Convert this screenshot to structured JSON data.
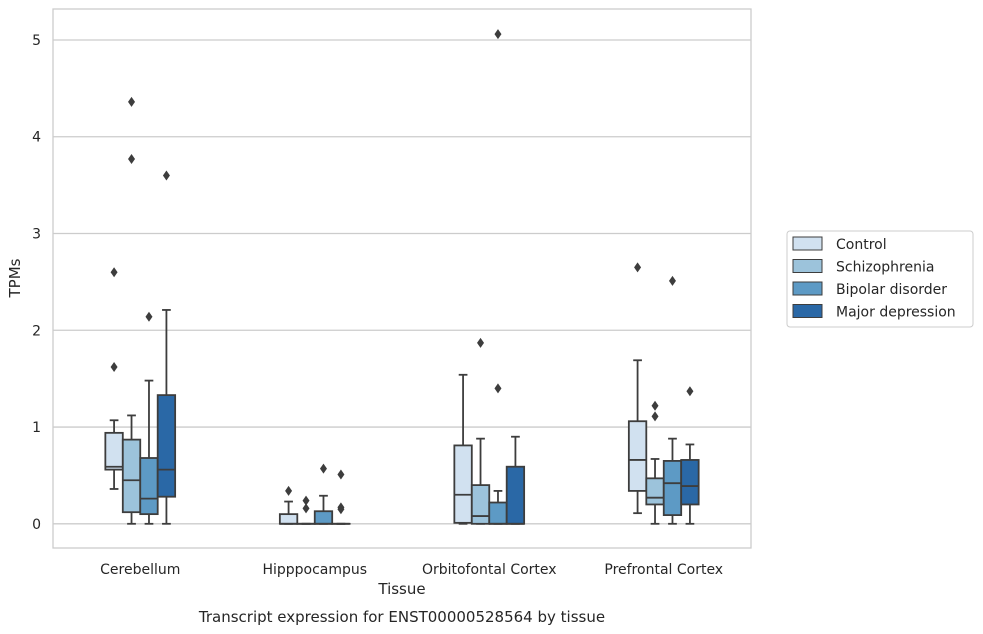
{
  "caption": "Transcript expression for ENST00000528564 by tissue",
  "chart_data": {
    "type": "box",
    "xlabel": "Tissue",
    "ylabel": "TPMs",
    "ylim": [
      -0.25,
      5.32
    ],
    "yticks": [
      0,
      1,
      2,
      3,
      4,
      5
    ],
    "grid": "horizontal",
    "legend_position": "right",
    "categories": [
      "Cerebellum",
      "Hipppocampus",
      "Orbitofontal Cortex",
      "Prefrontal Cortex"
    ],
    "series": [
      {
        "name": "Control",
        "color": "#d1e1f0",
        "boxes": [
          {
            "whisker_low": 0.36,
            "q1": 0.56,
            "median": 0.59,
            "q3": 0.94,
            "whisker_high": 1.07,
            "outliers": [
              1.62,
              2.6
            ]
          },
          {
            "whisker_low": 0.0,
            "q1": 0.0,
            "median": 0.0,
            "q3": 0.1,
            "whisker_high": 0.23,
            "outliers": [
              0.34
            ]
          },
          {
            "whisker_low": 0.0,
            "q1": 0.01,
            "median": 0.3,
            "q3": 0.81,
            "whisker_high": 1.54,
            "outliers": []
          },
          {
            "whisker_low": 0.11,
            "q1": 0.34,
            "median": 0.66,
            "q3": 1.06,
            "whisker_high": 1.69,
            "outliers": [
              2.65
            ]
          }
        ]
      },
      {
        "name": "Schizophrenia",
        "color": "#9cc3db",
        "boxes": [
          {
            "whisker_low": 0.0,
            "q1": 0.12,
            "median": 0.45,
            "q3": 0.87,
            "whisker_high": 1.12,
            "outliers": [
              3.77,
              4.36
            ]
          },
          {
            "whisker_low": 0.0,
            "q1": 0.0,
            "median": 0.0,
            "q3": 0.0,
            "whisker_high": 0.0,
            "outliers": [
              0.16,
              0.24
            ]
          },
          {
            "whisker_low": 0.0,
            "q1": 0.0,
            "median": 0.08,
            "q3": 0.4,
            "whisker_high": 0.88,
            "outliers": [
              1.87
            ]
          },
          {
            "whisker_low": 0.0,
            "q1": 0.2,
            "median": 0.27,
            "q3": 0.47,
            "whisker_high": 0.67,
            "outliers": [
              1.11,
              1.22
            ]
          }
        ]
      },
      {
        "name": "Bipolar disorder",
        "color": "#5d9ac5",
        "boxes": [
          {
            "whisker_low": 0.0,
            "q1": 0.1,
            "median": 0.26,
            "q3": 0.68,
            "whisker_high": 1.48,
            "outliers": [
              2.14
            ]
          },
          {
            "whisker_low": 0.0,
            "q1": 0.0,
            "median": 0.0,
            "q3": 0.13,
            "whisker_high": 0.29,
            "outliers": [
              0.57
            ]
          },
          {
            "whisker_low": 0.0,
            "q1": 0.0,
            "median": 0.0,
            "q3": 0.22,
            "whisker_high": 0.34,
            "outliers": [
              1.4,
              5.06
            ]
          },
          {
            "whisker_low": 0.0,
            "q1": 0.09,
            "median": 0.42,
            "q3": 0.65,
            "whisker_high": 0.88,
            "outliers": [
              2.51
            ]
          }
        ]
      },
      {
        "name": "Major depression",
        "color": "#2a68a6",
        "boxes": [
          {
            "whisker_low": 0.0,
            "q1": 0.28,
            "median": 0.56,
            "q3": 1.33,
            "whisker_high": 2.21,
            "outliers": [
              3.6
            ]
          },
          {
            "whisker_low": 0.0,
            "q1": 0.0,
            "median": 0.0,
            "q3": 0.0,
            "whisker_high": 0.0,
            "outliers": [
              0.15,
              0.17,
              0.51
            ]
          },
          {
            "whisker_low": 0.0,
            "q1": 0.0,
            "median": 0.0,
            "q3": 0.59,
            "whisker_high": 0.9,
            "outliers": []
          },
          {
            "whisker_low": 0.0,
            "q1": 0.2,
            "median": 0.39,
            "q3": 0.66,
            "whisker_high": 0.82,
            "outliers": [
              1.37
            ]
          }
        ]
      }
    ]
  }
}
